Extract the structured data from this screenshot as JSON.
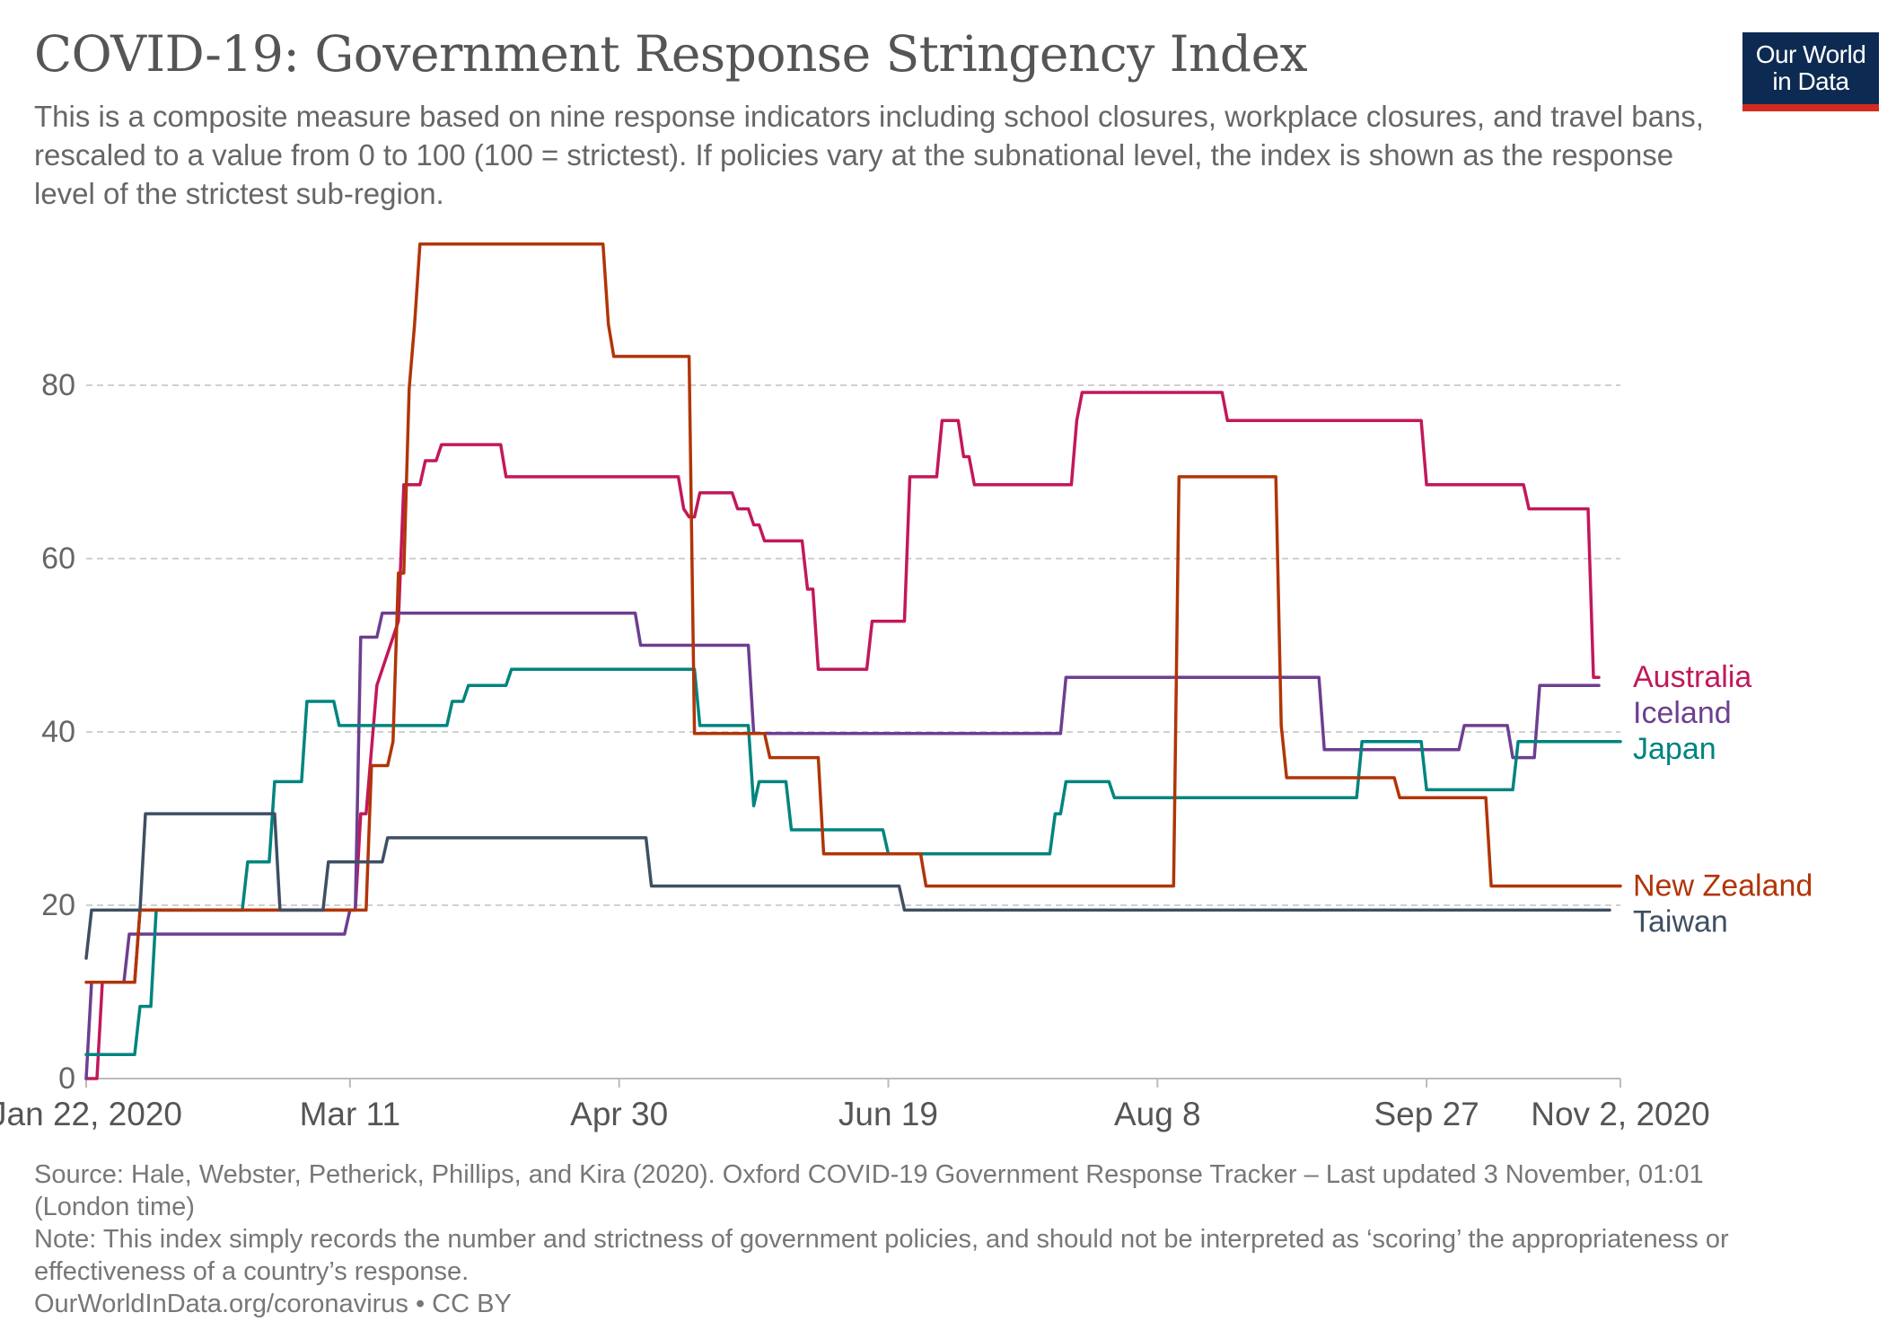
{
  "header": {
    "title": "COVID-19: Government Response Stringency Index",
    "subtitle": "This is a composite measure based on nine response indicators including school closures, workplace closures, and travel bans, rescaled to a value from 0 to 100 (100 = strictest). If policies vary at the subnational level, the index is shown as the response level of the strictest sub-region."
  },
  "logo": {
    "line1": "Our World",
    "line2": "in Data",
    "bg_color": "#0d2b52",
    "accent_color": "#d42b21"
  },
  "footer": {
    "source": "Source: Hale, Webster, Petherick, Phillips, and Kira (2020). Oxford COVID-19 Government Response Tracker – Last updated 3 November, 01:01 (London time)",
    "note": "Note: This index simply records the number and strictness of government policies, and should not be interpreted as ‘scoring’ the appropriateness or effectiveness of a country’s response.",
    "credit": "OurWorldInData.org/coronavirus • CC BY"
  },
  "chart_data": {
    "type": "line",
    "title": "COVID-19: Government Response Stringency Index",
    "xlabel": "",
    "ylabel": "",
    "x_start": "2020-01-22",
    "x_end": "2020-11-02",
    "ylim": [
      0,
      100
    ],
    "yticks": [
      0,
      20,
      40,
      60,
      80
    ],
    "grid": true,
    "legend": "right-end-labels",
    "x_ticks": [
      {
        "date": "2020-01-22",
        "label": "Jan 22, 2020"
      },
      {
        "date": "2020-03-11",
        "label": "Mar 11"
      },
      {
        "date": "2020-04-30",
        "label": "Apr 30"
      },
      {
        "date": "2020-06-19",
        "label": "Jun 19"
      },
      {
        "date": "2020-08-08",
        "label": "Aug 8"
      },
      {
        "date": "2020-09-27",
        "label": "Sep 27"
      },
      {
        "date": "2020-11-02",
        "label": "Nov 2, 2020"
      }
    ],
    "series": [
      {
        "name": "Australia",
        "color": "#c2185b",
        "points": [
          [
            "2020-01-22",
            0
          ],
          [
            "2020-01-23",
            0
          ],
          [
            "2020-01-24",
            0
          ],
          [
            "2020-01-25",
            11.11
          ],
          [
            "2020-01-31",
            11.11
          ],
          [
            "2020-02-01",
            19.44
          ],
          [
            "2020-03-12",
            19.44
          ],
          [
            "2020-03-13",
            30.56
          ],
          [
            "2020-03-14",
            30.56
          ],
          [
            "2020-03-16",
            45.37
          ],
          [
            "2020-03-17",
            47.22
          ],
          [
            "2020-03-20",
            52.78
          ],
          [
            "2020-03-21",
            68.52
          ],
          [
            "2020-03-24",
            68.52
          ],
          [
            "2020-03-25",
            71.3
          ],
          [
            "2020-03-27",
            71.3
          ],
          [
            "2020-03-28",
            73.15
          ],
          [
            "2020-04-08",
            73.15
          ],
          [
            "2020-04-09",
            69.44
          ],
          [
            "2020-05-11",
            69.44
          ],
          [
            "2020-05-12",
            65.74
          ],
          [
            "2020-05-13",
            64.81
          ],
          [
            "2020-05-14",
            64.81
          ],
          [
            "2020-05-15",
            67.59
          ],
          [
            "2020-05-21",
            67.59
          ],
          [
            "2020-05-22",
            65.74
          ],
          [
            "2020-05-24",
            65.74
          ],
          [
            "2020-05-25",
            63.89
          ],
          [
            "2020-05-26",
            63.89
          ],
          [
            "2020-05-27",
            62.04
          ],
          [
            "2020-06-03",
            62.04
          ],
          [
            "2020-06-04",
            56.48
          ],
          [
            "2020-06-05",
            56.48
          ],
          [
            "2020-06-06",
            47.22
          ],
          [
            "2020-06-15",
            47.22
          ],
          [
            "2020-06-16",
            52.78
          ],
          [
            "2020-06-22",
            52.78
          ],
          [
            "2020-06-23",
            69.44
          ],
          [
            "2020-06-28",
            69.44
          ],
          [
            "2020-06-29",
            75.93
          ],
          [
            "2020-07-02",
            75.93
          ],
          [
            "2020-07-03",
            71.76
          ],
          [
            "2020-07-04",
            71.76
          ],
          [
            "2020-07-05",
            68.52
          ],
          [
            "2020-07-23",
            68.52
          ],
          [
            "2020-07-24",
            75.93
          ],
          [
            "2020-07-25",
            79.17
          ],
          [
            "2020-08-20",
            79.17
          ],
          [
            "2020-08-21",
            75.93
          ],
          [
            "2020-09-26",
            75.93
          ],
          [
            "2020-09-27",
            68.52
          ],
          [
            "2020-10-15",
            68.52
          ],
          [
            "2020-10-16",
            65.74
          ],
          [
            "2020-10-27",
            65.74
          ],
          [
            "2020-10-28",
            46.3
          ],
          [
            "2020-10-29",
            46.3
          ]
        ]
      },
      {
        "name": "Iceland",
        "color": "#6d3e91",
        "points": [
          [
            "2020-01-22",
            0
          ],
          [
            "2020-01-23",
            11.11
          ],
          [
            "2020-01-29",
            11.11
          ],
          [
            "2020-01-30",
            16.67
          ],
          [
            "2020-03-10",
            16.67
          ],
          [
            "2020-03-11",
            19.44
          ],
          [
            "2020-03-12",
            19.44
          ],
          [
            "2020-03-13",
            50.93
          ],
          [
            "2020-03-16",
            50.93
          ],
          [
            "2020-03-17",
            53.7
          ],
          [
            "2020-05-03",
            53.7
          ],
          [
            "2020-05-04",
            50
          ],
          [
            "2020-05-24",
            50
          ],
          [
            "2020-05-25",
            39.81
          ],
          [
            "2020-07-21",
            39.81
          ],
          [
            "2020-07-22",
            46.3
          ],
          [
            "2020-09-07",
            46.3
          ],
          [
            "2020-09-08",
            37.96
          ],
          [
            "2020-10-03",
            37.96
          ],
          [
            "2020-10-04",
            40.74
          ],
          [
            "2020-10-12",
            40.74
          ],
          [
            "2020-10-13",
            37.04
          ],
          [
            "2020-10-17",
            37.04
          ],
          [
            "2020-10-18",
            45.37
          ],
          [
            "2020-10-29",
            45.37
          ]
        ]
      },
      {
        "name": "Japan",
        "color": "#00847e",
        "points": [
          [
            "2020-01-22",
            2.78
          ],
          [
            "2020-01-31",
            2.78
          ],
          [
            "2020-02-01",
            8.33
          ],
          [
            "2020-02-03",
            8.33
          ],
          [
            "2020-02-04",
            19.44
          ],
          [
            "2020-02-20",
            19.44
          ],
          [
            "2020-02-21",
            25
          ],
          [
            "2020-02-25",
            25
          ],
          [
            "2020-02-26",
            34.26
          ],
          [
            "2020-03-02",
            34.26
          ],
          [
            "2020-03-03",
            43.52
          ],
          [
            "2020-03-08",
            43.52
          ],
          [
            "2020-03-09",
            40.74
          ],
          [
            "2020-03-29",
            40.74
          ],
          [
            "2020-03-30",
            43.52
          ],
          [
            "2020-04-01",
            43.52
          ],
          [
            "2020-04-02",
            45.37
          ],
          [
            "2020-04-09",
            45.37
          ],
          [
            "2020-04-10",
            47.22
          ],
          [
            "2020-05-14",
            47.22
          ],
          [
            "2020-05-15",
            40.74
          ],
          [
            "2020-05-24",
            40.74
          ],
          [
            "2020-05-25",
            31.48
          ],
          [
            "2020-05-26",
            34.26
          ],
          [
            "2020-05-31",
            34.26
          ],
          [
            "2020-06-01",
            28.7
          ],
          [
            "2020-06-18",
            28.7
          ],
          [
            "2020-06-19",
            25.93
          ],
          [
            "2020-07-19",
            25.93
          ],
          [
            "2020-07-20",
            30.56
          ],
          [
            "2020-07-21",
            30.56
          ],
          [
            "2020-07-22",
            34.26
          ],
          [
            "2020-07-30",
            34.26
          ],
          [
            "2020-07-31",
            32.41
          ],
          [
            "2020-09-14",
            32.41
          ],
          [
            "2020-09-15",
            38.89
          ],
          [
            "2020-09-26",
            38.89
          ],
          [
            "2020-09-27",
            33.33
          ],
          [
            "2020-10-13",
            33.33
          ],
          [
            "2020-10-14",
            38.89
          ],
          [
            "2020-11-02",
            38.89
          ]
        ]
      },
      {
        "name": "New Zealand",
        "color": "#b13507",
        "points": [
          [
            "2020-01-22",
            11.11
          ],
          [
            "2020-01-31",
            11.11
          ],
          [
            "2020-02-01",
            19.44
          ],
          [
            "2020-03-14",
            19.44
          ],
          [
            "2020-03-15",
            36.11
          ],
          [
            "2020-03-18",
            36.11
          ],
          [
            "2020-03-19",
            38.89
          ],
          [
            "2020-03-20",
            58.33
          ],
          [
            "2020-03-21",
            58.33
          ],
          [
            "2020-03-22",
            79.63
          ],
          [
            "2020-03-23",
            87.04
          ],
          [
            "2020-03-24",
            96.3
          ],
          [
            "2020-04-27",
            96.3
          ],
          [
            "2020-04-28",
            87.04
          ],
          [
            "2020-04-29",
            83.33
          ],
          [
            "2020-05-13",
            83.33
          ],
          [
            "2020-05-14",
            39.81
          ],
          [
            "2020-05-27",
            39.81
          ],
          [
            "2020-05-28",
            37.04
          ],
          [
            "2020-06-06",
            37.04
          ],
          [
            "2020-06-07",
            25.93
          ],
          [
            "2020-06-25",
            25.93
          ],
          [
            "2020-06-26",
            22.22
          ],
          [
            "2020-08-11",
            22.22
          ],
          [
            "2020-08-12",
            69.44
          ],
          [
            "2020-08-30",
            69.44
          ],
          [
            "2020-08-31",
            40.74
          ],
          [
            "2020-09-01",
            34.72
          ],
          [
            "2020-09-21",
            34.72
          ],
          [
            "2020-09-22",
            32.41
          ],
          [
            "2020-10-08",
            32.41
          ],
          [
            "2020-10-09",
            22.22
          ],
          [
            "2020-11-02",
            22.22
          ]
        ]
      },
      {
        "name": "Taiwan",
        "color": "#3f4f62",
        "points": [
          [
            "2020-01-22",
            13.89
          ],
          [
            "2020-01-23",
            19.44
          ],
          [
            "2020-02-01",
            19.44
          ],
          [
            "2020-02-02",
            30.56
          ],
          [
            "2020-02-26",
            30.56
          ],
          [
            "2020-02-27",
            19.44
          ],
          [
            "2020-03-06",
            19.44
          ],
          [
            "2020-03-07",
            25
          ],
          [
            "2020-03-17",
            25
          ],
          [
            "2020-03-18",
            27.78
          ],
          [
            "2020-05-05",
            27.78
          ],
          [
            "2020-05-06",
            22.22
          ],
          [
            "2020-06-21",
            22.22
          ],
          [
            "2020-06-22",
            19.44
          ],
          [
            "2020-10-31",
            19.44
          ]
        ]
      }
    ]
  }
}
